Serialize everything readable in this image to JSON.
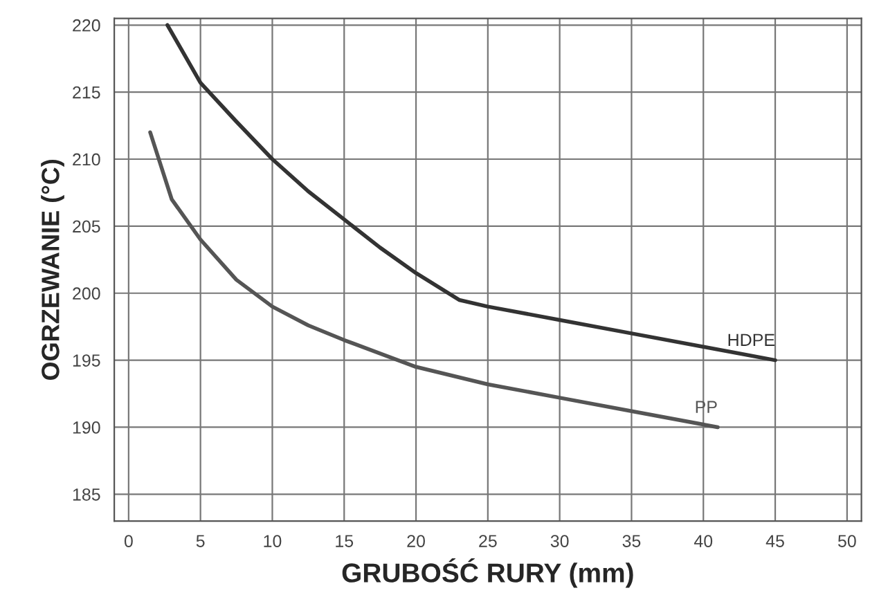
{
  "chart_data": {
    "type": "line",
    "xlabel": "GRUBOŚĆ RURY (mm)",
    "ylabel": "OGRZEWANIE (°C)",
    "xlim": [
      -1,
      51
    ],
    "ylim": [
      183,
      220.5
    ],
    "xticks": [
      0,
      5,
      10,
      15,
      20,
      25,
      30,
      35,
      40,
      45,
      50
    ],
    "yticks": [
      185,
      190,
      195,
      200,
      205,
      210,
      215,
      220
    ],
    "grid": true,
    "legend": false,
    "marker": "none",
    "line_style": "solid",
    "series": [
      {
        "name": "HDPE",
        "color": "#333333",
        "x": [
          2.7,
          5,
          7.5,
          10,
          12.5,
          15,
          17.5,
          20,
          23,
          25,
          30,
          35,
          40,
          45
        ],
        "values": [
          220,
          215.7,
          212.8,
          210,
          207.6,
          205.5,
          203.4,
          201.5,
          199.5,
          199,
          198,
          197,
          196,
          195
        ]
      },
      {
        "name": "PP",
        "color": "#555555",
        "x": [
          1.5,
          3,
          5,
          7.5,
          10,
          12.5,
          15,
          20,
          25,
          30,
          35,
          41
        ],
        "values": [
          212,
          207,
          204,
          201,
          199,
          197.6,
          196.5,
          194.5,
          193.2,
          192.2,
          191.2,
          190
        ]
      }
    ]
  }
}
